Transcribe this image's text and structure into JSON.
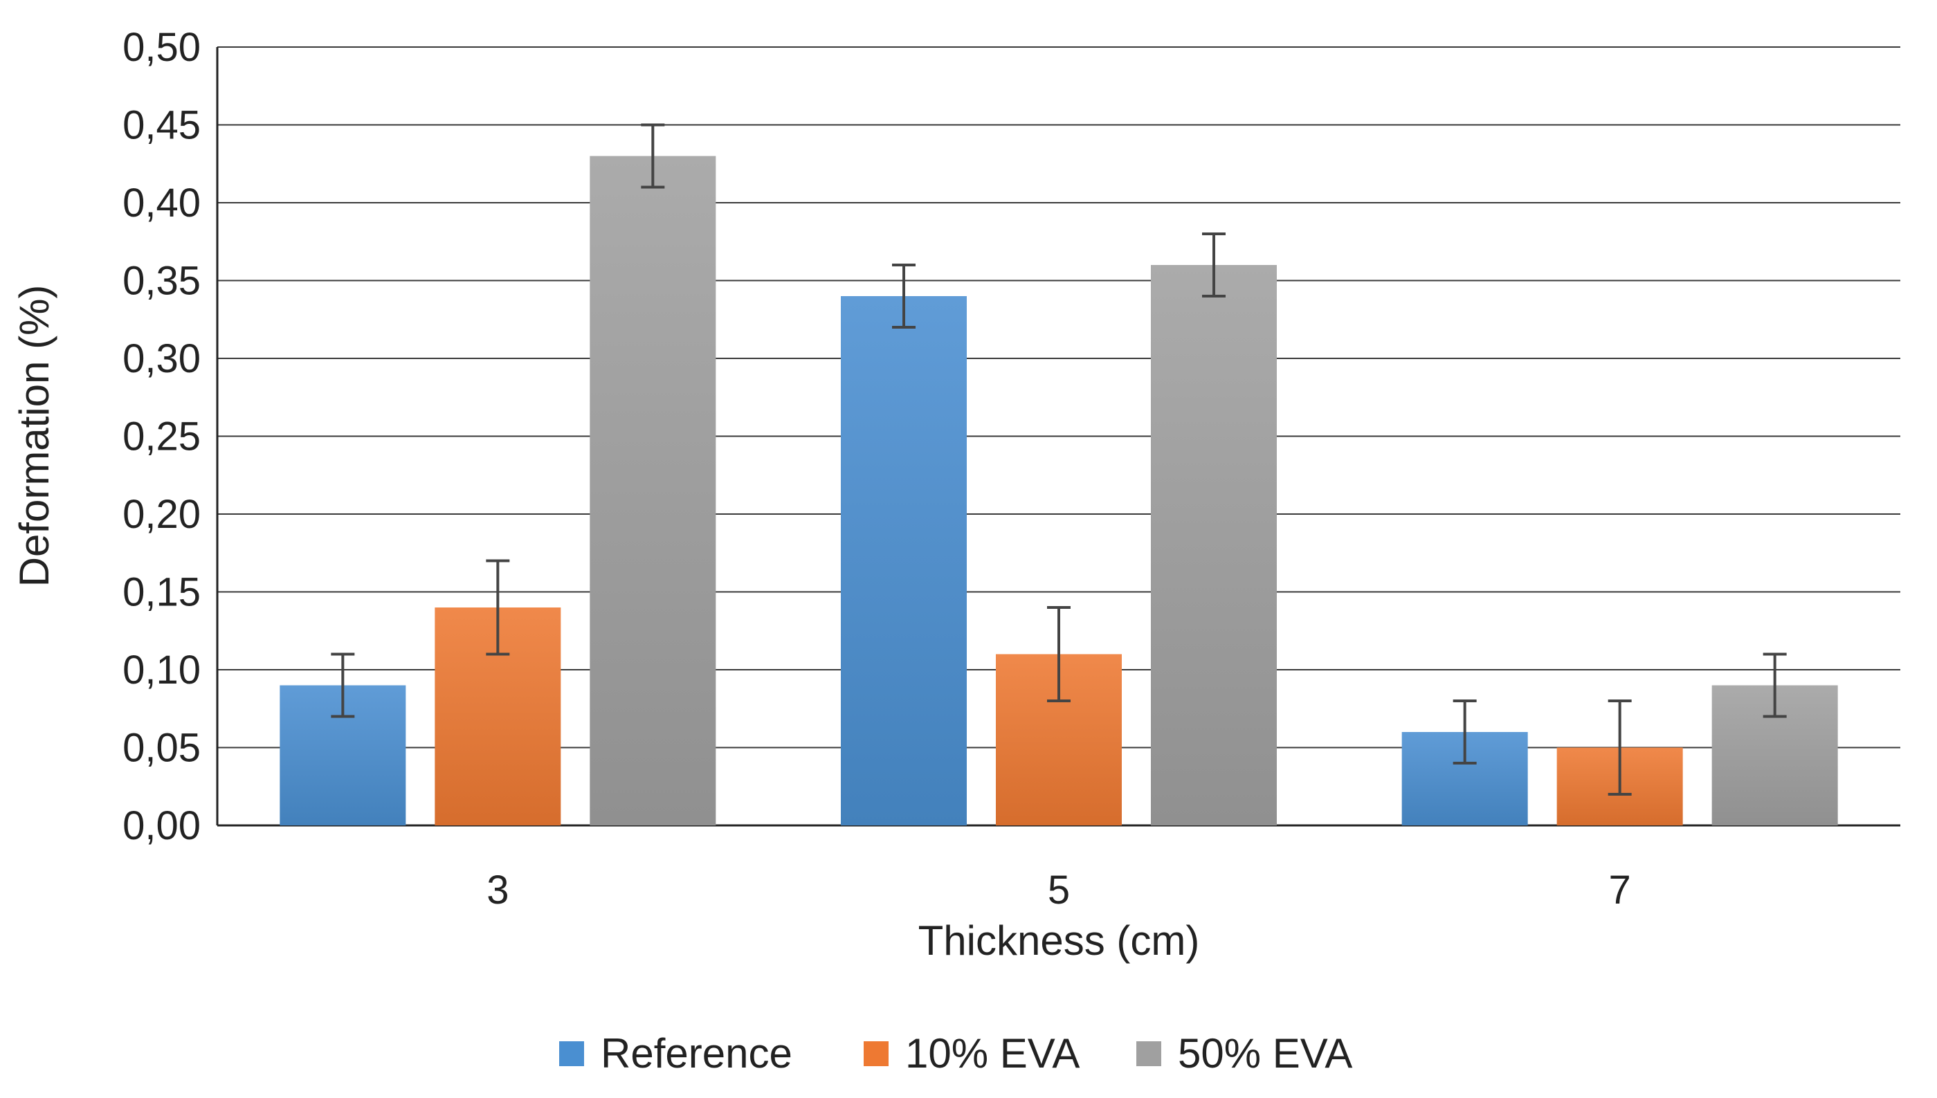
{
  "chart_data": {
    "type": "bar",
    "title": "",
    "xlabel": "Thickness (cm)",
    "ylabel": "Deformation (%)",
    "ylim": [
      0,
      0.5
    ],
    "yticks": [
      "0,00",
      "0,05",
      "0,10",
      "0,15",
      "0,20",
      "0,25",
      "0,30",
      "0,35",
      "0,40",
      "0,45",
      "0,50"
    ],
    "categories": [
      "3",
      "5",
      "7"
    ],
    "grid": true,
    "legend_position": "bottom",
    "series": [
      {
        "name": "Reference",
        "color": "#4a8fd1",
        "values": [
          0.09,
          0.34,
          0.06
        ],
        "errors": [
          0.02,
          0.02,
          0.02
        ]
      },
      {
        "name": "10% EVA",
        "color": "#ee7932",
        "values": [
          0.14,
          0.11,
          0.05
        ],
        "errors": [
          0.03,
          0.03,
          0.03
        ]
      },
      {
        "name": "50% EVA",
        "color": "#a0a0a0",
        "values": [
          0.43,
          0.36,
          0.09
        ],
        "errors": [
          0.02,
          0.02,
          0.02
        ]
      }
    ]
  }
}
